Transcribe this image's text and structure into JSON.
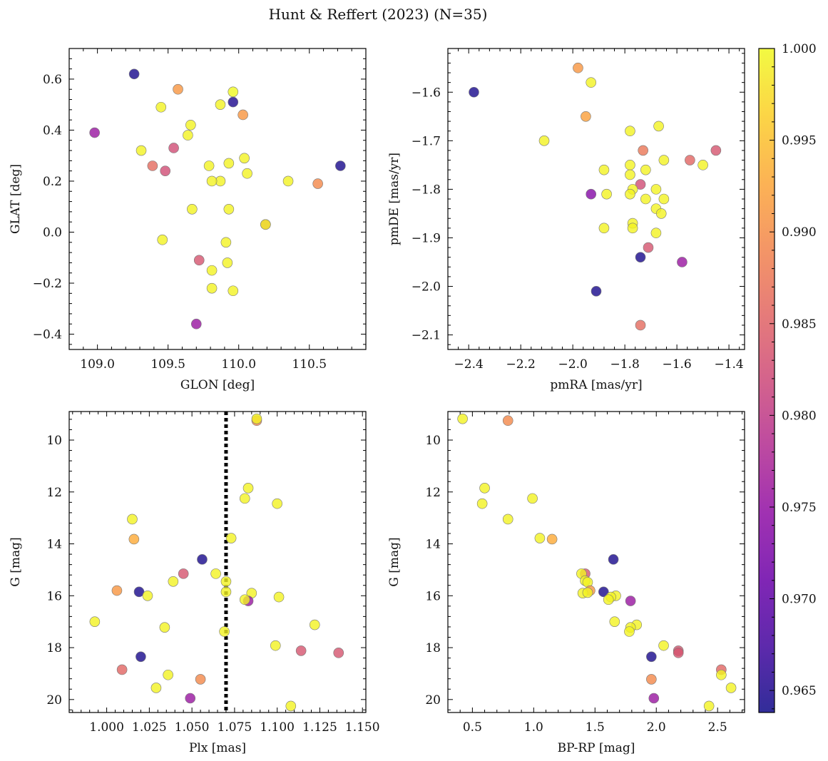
{
  "title": "Hunt & Reffert (2023) (N=35)",
  "colorbar": {
    "min": 0.9638,
    "max": 1.0,
    "ticks": [
      0.965,
      0.97,
      0.975,
      0.98,
      0.985,
      0.99,
      0.995,
      1.0
    ],
    "tick_labels": [
      "0.965",
      "0.970",
      "0.975",
      "0.980",
      "0.985",
      "0.990",
      "0.995",
      "1.000"
    ],
    "colormap": "plasma"
  },
  "chart_data": [
    {
      "id": "glon-glat",
      "type": "scatter",
      "xlabel": "GLON [deg]",
      "ylabel": "GLAT [deg]",
      "xlim": [
        108.8,
        110.9
      ],
      "ylim": [
        -0.46,
        0.72
      ],
      "xticks": [
        109.0,
        109.5,
        110.0,
        110.5
      ],
      "xtick_labels": [
        "109.0",
        "109.5",
        "110.0",
        "110.5"
      ],
      "yticks": [
        -0.4,
        -0.2,
        0.0,
        0.2,
        0.4,
        0.6
      ],
      "ytick_labels": [
        "−0.4",
        "−0.2",
        "0.0",
        "0.2",
        "0.4",
        "0.6"
      ],
      "invert_y": false,
      "points": [
        {
          "x": 109.26,
          "y": 0.62,
          "c": 0.9645
        },
        {
          "x": 109.57,
          "y": 0.56,
          "c": 0.991
        },
        {
          "x": 109.96,
          "y": 0.55,
          "c": 1.0
        },
        {
          "x": 109.96,
          "y": 0.51,
          "c": 0.9648
        },
        {
          "x": 109.87,
          "y": 0.5,
          "c": 0.9995
        },
        {
          "x": 109.45,
          "y": 0.49,
          "c": 0.9995
        },
        {
          "x": 110.03,
          "y": 0.46,
          "c": 0.991
        },
        {
          "x": 109.66,
          "y": 0.42,
          "c": 0.9995
        },
        {
          "x": 108.98,
          "y": 0.39,
          "c": 0.9755
        },
        {
          "x": 109.64,
          "y": 0.38,
          "c": 0.9995
        },
        {
          "x": 109.54,
          "y": 0.33,
          "c": 0.9825
        },
        {
          "x": 109.31,
          "y": 0.32,
          "c": 0.9995
        },
        {
          "x": 110.04,
          "y": 0.29,
          "c": 0.9995
        },
        {
          "x": 109.93,
          "y": 0.27,
          "c": 0.9995
        },
        {
          "x": 109.79,
          "y": 0.26,
          "c": 0.9995
        },
        {
          "x": 109.39,
          "y": 0.26,
          "c": 0.9862
        },
        {
          "x": 110.72,
          "y": 0.26,
          "c": 0.9645
        },
        {
          "x": 109.48,
          "y": 0.24,
          "c": 0.9825
        },
        {
          "x": 110.06,
          "y": 0.23,
          "c": 0.9995
        },
        {
          "x": 109.87,
          "y": 0.2,
          "c": 0.9995
        },
        {
          "x": 109.81,
          "y": 0.2,
          "c": 0.9995
        },
        {
          "x": 110.35,
          "y": 0.2,
          "c": 0.9995
        },
        {
          "x": 110.56,
          "y": 0.19,
          "c": 0.9895
        },
        {
          "x": 109.67,
          "y": 0.09,
          "c": 0.9995
        },
        {
          "x": 109.93,
          "y": 0.09,
          "c": 0.9995
        },
        {
          "x": 110.19,
          "y": 0.03,
          "c": 0.9835
        },
        {
          "x": 110.19,
          "y": 0.03,
          "c": 0.9995
        },
        {
          "x": 109.46,
          "y": -0.03,
          "c": 0.9995
        },
        {
          "x": 109.91,
          "y": -0.04,
          "c": 0.9995
        },
        {
          "x": 109.72,
          "y": -0.11,
          "c": 0.9835
        },
        {
          "x": 109.92,
          "y": -0.12,
          "c": 0.9995
        },
        {
          "x": 109.81,
          "y": -0.15,
          "c": 0.9995
        },
        {
          "x": 109.81,
          "y": -0.22,
          "c": 0.9995
        },
        {
          "x": 109.96,
          "y": -0.23,
          "c": 0.9995
        },
        {
          "x": 109.7,
          "y": -0.36,
          "c": 0.9755
        }
      ]
    },
    {
      "id": "pmra-pmde",
      "type": "scatter",
      "xlabel": "pmRA [mas/yr]",
      "ylabel": "pmDE [mas/yr]",
      "xlim": [
        -2.48,
        -1.34
      ],
      "ylim": [
        -2.13,
        -1.51
      ],
      "xticks": [
        -2.4,
        -2.2,
        -2.0,
        -1.8,
        -1.6,
        -1.4
      ],
      "xtick_labels": [
        "−2.4",
        "−2.2",
        "−2.0",
        "−1.8",
        "−1.6",
        "−1.4"
      ],
      "yticks": [
        -2.1,
        -2.0,
        -1.9,
        -1.8,
        -1.7,
        -1.6
      ],
      "ytick_labels": [
        "−2.1",
        "−2.0",
        "−1.9",
        "−1.8",
        "−1.7",
        "−1.6"
      ],
      "invert_y": false,
      "points": [
        {
          "x": -1.98,
          "y": -1.55,
          "c": 0.991
        },
        {
          "x": -1.93,
          "y": -1.58,
          "c": 0.9995
        },
        {
          "x": -2.38,
          "y": -1.6,
          "c": 0.9645
        },
        {
          "x": -1.95,
          "y": -1.65,
          "c": 0.992
        },
        {
          "x": -1.67,
          "y": -1.67,
          "c": 0.9995
        },
        {
          "x": -1.78,
          "y": -1.68,
          "c": 0.9995
        },
        {
          "x": -2.11,
          "y": -1.7,
          "c": 0.9995
        },
        {
          "x": -1.73,
          "y": -1.72,
          "c": 0.9875
        },
        {
          "x": -1.45,
          "y": -1.72,
          "c": 0.9835
        },
        {
          "x": -1.55,
          "y": -1.74,
          "c": 0.9855
        },
        {
          "x": -1.65,
          "y": -1.74,
          "c": 0.9995
        },
        {
          "x": -1.5,
          "y": -1.75,
          "c": 0.9995
        },
        {
          "x": -1.78,
          "y": -1.75,
          "c": 0.9995
        },
        {
          "x": -1.72,
          "y": -1.76,
          "c": 0.9995
        },
        {
          "x": -1.88,
          "y": -1.76,
          "c": 0.9995
        },
        {
          "x": -1.78,
          "y": -1.77,
          "c": 0.9995
        },
        {
          "x": -1.74,
          "y": -1.79,
          "c": 0.9825
        },
        {
          "x": -1.77,
          "y": -1.8,
          "c": 0.9995
        },
        {
          "x": -1.68,
          "y": -1.8,
          "c": 0.9995
        },
        {
          "x": -1.93,
          "y": -1.81,
          "c": 0.9735
        },
        {
          "x": -1.87,
          "y": -1.81,
          "c": 0.9995
        },
        {
          "x": -1.78,
          "y": -1.81,
          "c": 0.9995
        },
        {
          "x": -1.65,
          "y": -1.82,
          "c": 0.9995
        },
        {
          "x": -1.72,
          "y": -1.82,
          "c": 0.9995
        },
        {
          "x": -1.68,
          "y": -1.84,
          "c": 0.9995
        },
        {
          "x": -1.66,
          "y": -1.85,
          "c": 0.9995
        },
        {
          "x": -1.88,
          "y": -1.88,
          "c": 0.9995
        },
        {
          "x": -1.77,
          "y": -1.87,
          "c": 0.9995
        },
        {
          "x": -1.77,
          "y": -1.88,
          "c": 0.9995
        },
        {
          "x": -1.68,
          "y": -1.89,
          "c": 0.9995
        },
        {
          "x": -1.71,
          "y": -1.92,
          "c": 0.9835
        },
        {
          "x": -1.74,
          "y": -1.94,
          "c": 0.9645
        },
        {
          "x": -1.58,
          "y": -1.95,
          "c": 0.9755
        },
        {
          "x": -1.91,
          "y": -2.01,
          "c": 0.9645
        },
        {
          "x": -1.74,
          "y": -2.08,
          "c": 0.9862
        }
      ]
    },
    {
      "id": "plx-g",
      "type": "scatter",
      "xlabel": "Plx [mas]",
      "ylabel": "G [mag]",
      "xlim": [
        0.978,
        1.152
      ],
      "ylim": [
        8.9,
        20.5
      ],
      "xticks": [
        1.0,
        1.025,
        1.05,
        1.075,
        1.1,
        1.125,
        1.15
      ],
      "xtick_labels": [
        "1.000",
        "1.025",
        "1.050",
        "1.075",
        "1.100",
        "1.125",
        "1.150"
      ],
      "yticks": [
        10,
        12,
        14,
        16,
        18,
        20
      ],
      "ytick_labels": [
        "10",
        "12",
        "14",
        "16",
        "18",
        "20"
      ],
      "invert_y": true,
      "vline": 1.07,
      "points": [
        {
          "x": 1.088,
          "y": 9.25,
          "c": 0.9895
        },
        {
          "x": 1.088,
          "y": 9.18,
          "c": 0.9995
        },
        {
          "x": 1.083,
          "y": 11.85,
          "c": 0.9995
        },
        {
          "x": 1.081,
          "y": 12.25,
          "c": 0.9995
        },
        {
          "x": 1.1,
          "y": 12.45,
          "c": 0.9995
        },
        {
          "x": 1.015,
          "y": 13.05,
          "c": 0.9995
        },
        {
          "x": 1.016,
          "y": 13.82,
          "c": 0.993
        },
        {
          "x": 1.073,
          "y": 13.78,
          "c": 0.9995
        },
        {
          "x": 1.056,
          "y": 14.6,
          "c": 0.9645
        },
        {
          "x": 1.045,
          "y": 15.15,
          "c": 0.9835
        },
        {
          "x": 1.064,
          "y": 15.15,
          "c": 0.9995
        },
        {
          "x": 1.039,
          "y": 15.45,
          "c": 0.9995
        },
        {
          "x": 1.07,
          "y": 15.45,
          "c": 0.9995
        },
        {
          "x": 1.006,
          "y": 15.8,
          "c": 0.991
        },
        {
          "x": 1.019,
          "y": 15.85,
          "c": 0.9645
        },
        {
          "x": 1.07,
          "y": 15.85,
          "c": 0.9995
        },
        {
          "x": 1.085,
          "y": 15.9,
          "c": 0.9995
        },
        {
          "x": 1.024,
          "y": 16.0,
          "c": 0.9995
        },
        {
          "x": 1.101,
          "y": 16.05,
          "c": 0.9995
        },
        {
          "x": 1.083,
          "y": 16.2,
          "c": 0.9755
        },
        {
          "x": 1.081,
          "y": 16.15,
          "c": 0.9995
        },
        {
          "x": 0.993,
          "y": 17.0,
          "c": 0.9995
        },
        {
          "x": 1.122,
          "y": 17.12,
          "c": 0.9995
        },
        {
          "x": 1.034,
          "y": 17.22,
          "c": 0.9995
        },
        {
          "x": 1.069,
          "y": 17.38,
          "c": 0.9995
        },
        {
          "x": 1.099,
          "y": 17.92,
          "c": 0.9995
        },
        {
          "x": 1.114,
          "y": 18.12,
          "c": 0.9835
        },
        {
          "x": 1.136,
          "y": 18.2,
          "c": 0.9835
        },
        {
          "x": 1.02,
          "y": 18.35,
          "c": 0.9645
        },
        {
          "x": 1.009,
          "y": 18.85,
          "c": 0.9855
        },
        {
          "x": 1.036,
          "y": 19.05,
          "c": 0.9995
        },
        {
          "x": 1.055,
          "y": 19.22,
          "c": 0.9895
        },
        {
          "x": 1.029,
          "y": 19.55,
          "c": 0.9995
        },
        {
          "x": 1.049,
          "y": 19.95,
          "c": 0.9755
        },
        {
          "x": 1.108,
          "y": 20.25,
          "c": 0.9995
        }
      ]
    },
    {
      "id": "bprp-g",
      "type": "scatter",
      "xlabel": "BP-RP [mag]",
      "ylabel": "G [mag]",
      "xlim": [
        0.3,
        2.72
      ],
      "ylim": [
        8.9,
        20.5
      ],
      "xticks": [
        0.5,
        1.0,
        1.5,
        2.0,
        2.5
      ],
      "xtick_labels": [
        "0.5",
        "1.0",
        "1.5",
        "2.0",
        "2.5"
      ],
      "yticks": [
        10,
        12,
        14,
        16,
        18,
        20
      ],
      "ytick_labels": [
        "10",
        "12",
        "14",
        "16",
        "18",
        "20"
      ],
      "invert_y": true,
      "points": [
        {
          "x": 0.42,
          "y": 9.18,
          "c": 0.9995
        },
        {
          "x": 0.79,
          "y": 9.25,
          "c": 0.9895
        },
        {
          "x": 0.6,
          "y": 11.85,
          "c": 0.9995
        },
        {
          "x": 0.58,
          "y": 12.45,
          "c": 0.9995
        },
        {
          "x": 0.99,
          "y": 12.25,
          "c": 0.9995
        },
        {
          "x": 0.79,
          "y": 13.05,
          "c": 0.9995
        },
        {
          "x": 1.05,
          "y": 13.78,
          "c": 0.9995
        },
        {
          "x": 1.15,
          "y": 13.82,
          "c": 0.993
        },
        {
          "x": 1.65,
          "y": 14.6,
          "c": 0.9645
        },
        {
          "x": 1.42,
          "y": 15.15,
          "c": 0.9835
        },
        {
          "x": 1.39,
          "y": 15.15,
          "c": 0.9995
        },
        {
          "x": 1.42,
          "y": 15.42,
          "c": 0.9995
        },
        {
          "x": 1.44,
          "y": 15.48,
          "c": 0.9995
        },
        {
          "x": 1.57,
          "y": 15.85,
          "c": 0.9645
        },
        {
          "x": 1.46,
          "y": 15.8,
          "c": 0.991
        },
        {
          "x": 1.4,
          "y": 15.9,
          "c": 0.9995
        },
        {
          "x": 1.44,
          "y": 15.88,
          "c": 0.9995
        },
        {
          "x": 1.67,
          "y": 16.0,
          "c": 0.9995
        },
        {
          "x": 1.63,
          "y": 16.05,
          "c": 0.9995
        },
        {
          "x": 1.61,
          "y": 16.15,
          "c": 0.9995
        },
        {
          "x": 1.79,
          "y": 16.2,
          "c": 0.9755
        },
        {
          "x": 1.66,
          "y": 17.0,
          "c": 0.9995
        },
        {
          "x": 1.84,
          "y": 17.12,
          "c": 0.9995
        },
        {
          "x": 1.79,
          "y": 17.22,
          "c": 0.9995
        },
        {
          "x": 1.78,
          "y": 17.38,
          "c": 0.9995
        },
        {
          "x": 2.06,
          "y": 17.92,
          "c": 0.9995
        },
        {
          "x": 2.18,
          "y": 18.12,
          "c": 0.9835
        },
        {
          "x": 2.18,
          "y": 18.2,
          "c": 0.9835
        },
        {
          "x": 1.96,
          "y": 18.35,
          "c": 0.9645
        },
        {
          "x": 2.53,
          "y": 18.85,
          "c": 0.9855
        },
        {
          "x": 2.53,
          "y": 19.05,
          "c": 0.9995
        },
        {
          "x": 1.96,
          "y": 19.22,
          "c": 0.9895
        },
        {
          "x": 2.61,
          "y": 19.55,
          "c": 0.9995
        },
        {
          "x": 1.98,
          "y": 19.95,
          "c": 0.9755
        },
        {
          "x": 2.43,
          "y": 20.25,
          "c": 0.9995
        }
      ]
    }
  ]
}
